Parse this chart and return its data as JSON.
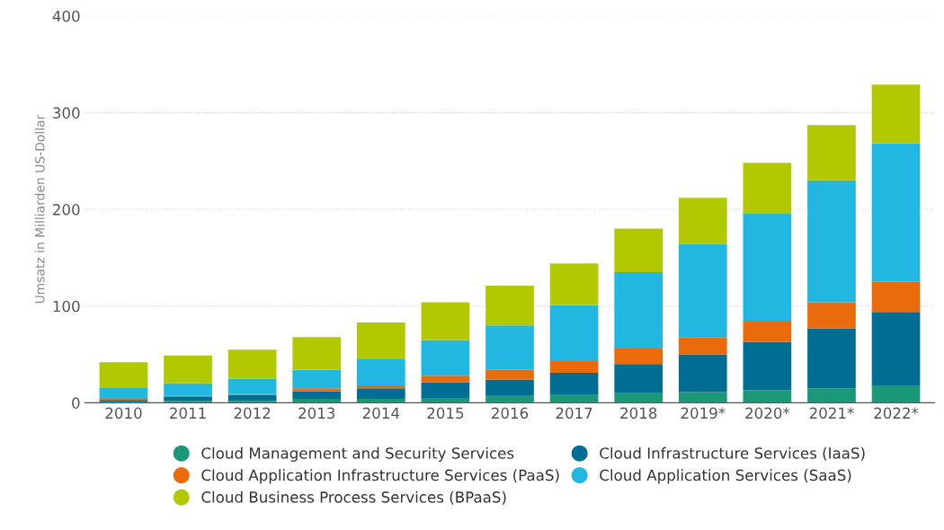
{
  "chart_data": {
    "type": "bar",
    "stacked": true,
    "ylabel": "Umsatz in Milliarden US-Dollar",
    "categories": [
      "2010",
      "2011",
      "2012",
      "2013",
      "2014",
      "2015",
      "2016",
      "2017",
      "2018",
      "2019*",
      "2020*",
      "2021*",
      "2022*"
    ],
    "series": [
      {
        "name": "Cloud Management and Security Services",
        "color": "#1a9878",
        "values": [
          1,
          2,
          2,
          4,
          4,
          5,
          7,
          8,
          10,
          11,
          13,
          15,
          18
        ]
      },
      {
        "name": "Cloud Infrastructure Services (IaaS)",
        "color": "#006d93",
        "values": [
          2,
          4,
          6,
          8,
          11,
          16,
          17,
          23,
          30,
          39,
          50,
          62,
          76
        ]
      },
      {
        "name": "Cloud Application Infrastructure Services (PaaS)",
        "color": "#ea6b0c",
        "values": [
          1,
          1,
          1,
          3,
          3,
          7,
          10,
          12,
          16,
          18,
          22,
          27,
          31
        ]
      },
      {
        "name": "Cloud Application Services (SaaS)",
        "color": "#22b7e1",
        "values": [
          12,
          13,
          16,
          19,
          27,
          37,
          46,
          58,
          79,
          96,
          111,
          126,
          143
        ]
      },
      {
        "name": "Cloud Business Process Services (BPaaS)",
        "color": "#b2c800",
        "values": [
          26,
          29,
          30,
          34,
          38,
          39,
          41,
          43,
          45,
          48,
          52,
          57,
          61
        ]
      }
    ],
    "ylim": [
      0,
      400
    ],
    "yticks": [
      0,
      100,
      200,
      300,
      400
    ],
    "grid": "y",
    "legend": "bottom"
  }
}
